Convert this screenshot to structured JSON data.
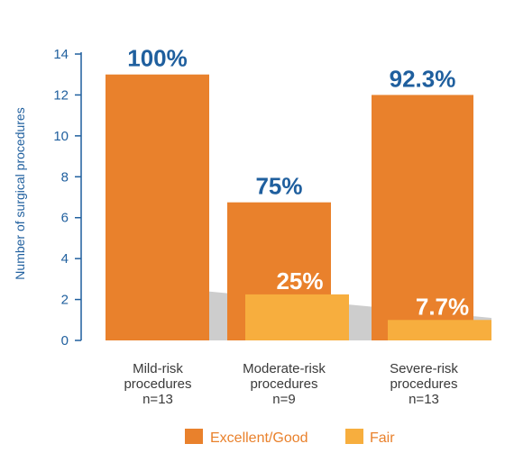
{
  "chart_data": {
    "type": "bar",
    "ylabel": "Number of surgical procedures",
    "ylim": [
      0,
      14
    ],
    "yticks": [
      0,
      2,
      4,
      6,
      8,
      10,
      12,
      14
    ],
    "categories": [
      [
        "Mild-risk",
        "procedures",
        "n=13"
      ],
      [
        "Moderate-risk",
        "procedures",
        "n=9"
      ],
      [
        "Severe-risk",
        "procedures",
        "n=13"
      ]
    ],
    "series": [
      {
        "name": "Excellent/Good",
        "color": "#e9812c",
        "values": [
          13,
          6.75,
          12
        ],
        "labels": [
          "100%",
          "75%",
          "92.3%"
        ]
      },
      {
        "name": "Fair",
        "color": "#f7ae3e",
        "values": [
          0,
          2.25,
          1
        ],
        "labels": [
          "",
          "25%",
          "7.7%"
        ]
      }
    ],
    "label_colors": {
      "dark": "#1f5f9e",
      "light": "#ffffff"
    },
    "grid": false,
    "legend_position": "bottom"
  }
}
